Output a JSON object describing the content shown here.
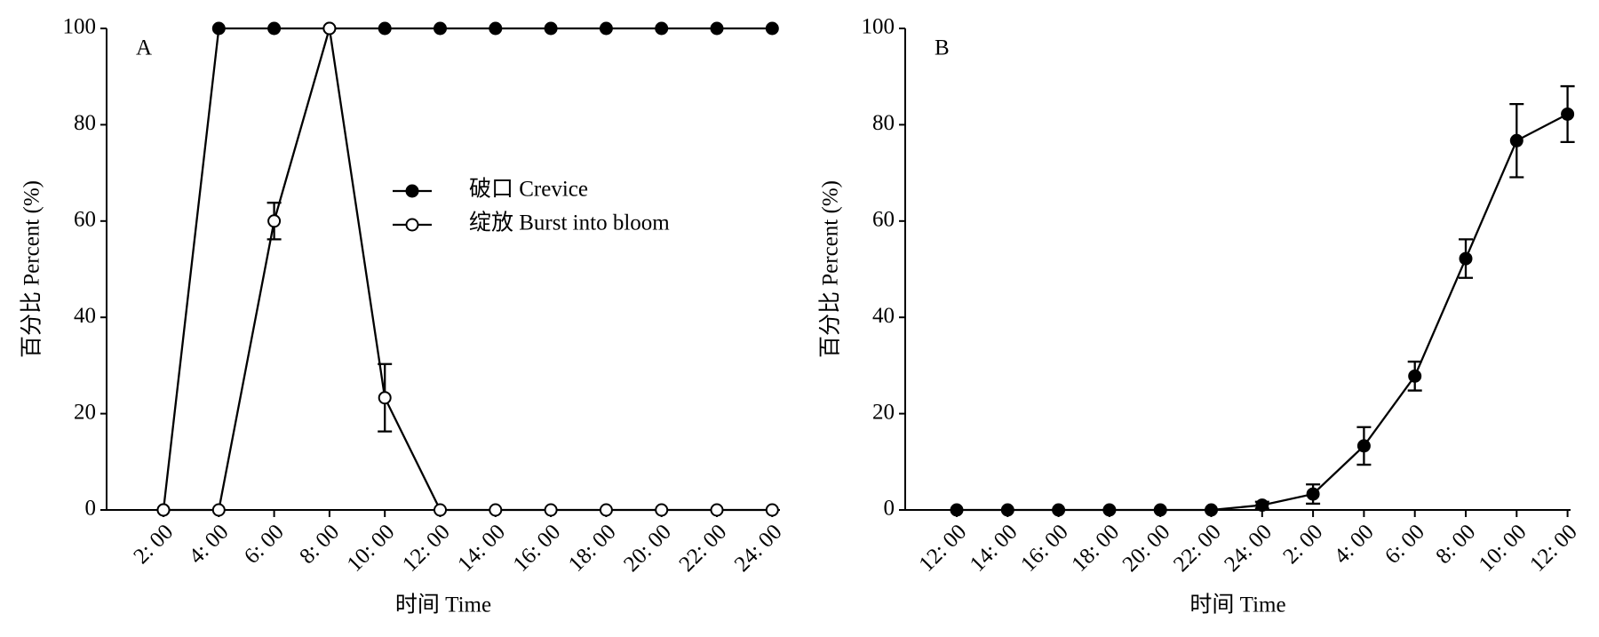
{
  "chart_data": [
    {
      "type": "line",
      "panel_label": "A",
      "x_label": "时间 Time",
      "y_label": "百分比 Percent (%)",
      "categories": [
        "2: 00",
        "4: 00",
        "6: 00",
        "8: 00",
        "10: 00",
        "12: 00",
        "14: 00",
        "16: 00",
        "18: 00",
        "20: 00",
        "22: 00",
        "24: 00"
      ],
      "ylim": [
        0,
        100
      ],
      "yticks": [
        0,
        20,
        40,
        60,
        80,
        100
      ],
      "legend": "center",
      "series": [
        {
          "name": "破口 Crevice",
          "color": "#000000",
          "marker_face": "#000000",
          "values": [
            0,
            100,
            100,
            100,
            100,
            100,
            100,
            100,
            100,
            100,
            100,
            100
          ],
          "errors": [
            null,
            null,
            null,
            null,
            null,
            null,
            null,
            null,
            null,
            null,
            null,
            null
          ]
        },
        {
          "name": "绽放 Burst into bloom",
          "color": "#000000",
          "marker_face": "#ffffff",
          "values": [
            0,
            0,
            60,
            100,
            23.3,
            0,
            0,
            0,
            0,
            0,
            0,
            0
          ],
          "errors": [
            null,
            null,
            3.8,
            null,
            7,
            null,
            null,
            null,
            null,
            null,
            null,
            null
          ]
        }
      ]
    },
    {
      "type": "line",
      "panel_label": "B",
      "x_label": "时间 Time",
      "y_label": "百分比 Percent (%)",
      "categories": [
        "12: 00",
        "14: 00",
        "16: 00",
        "18: 00",
        "20: 00",
        "22: 00",
        "24: 00",
        "2: 00",
        "4: 00",
        "6: 00",
        "8: 00",
        "10: 00",
        "12: 00"
      ],
      "ylim": [
        0,
        100
      ],
      "yticks": [
        0,
        20,
        40,
        60,
        80,
        100
      ],
      "series": [
        {
          "color": "#000000",
          "marker_face": "#000000",
          "values": [
            0,
            0,
            0,
            0,
            0,
            0,
            1,
            3.3,
            13.3,
            27.8,
            52.2,
            76.7,
            82.2
          ],
          "errors": [
            null,
            null,
            null,
            null,
            null,
            null,
            0.7,
            2,
            3.9,
            3,
            4,
            7.6,
            5.8
          ]
        }
      ]
    }
  ]
}
